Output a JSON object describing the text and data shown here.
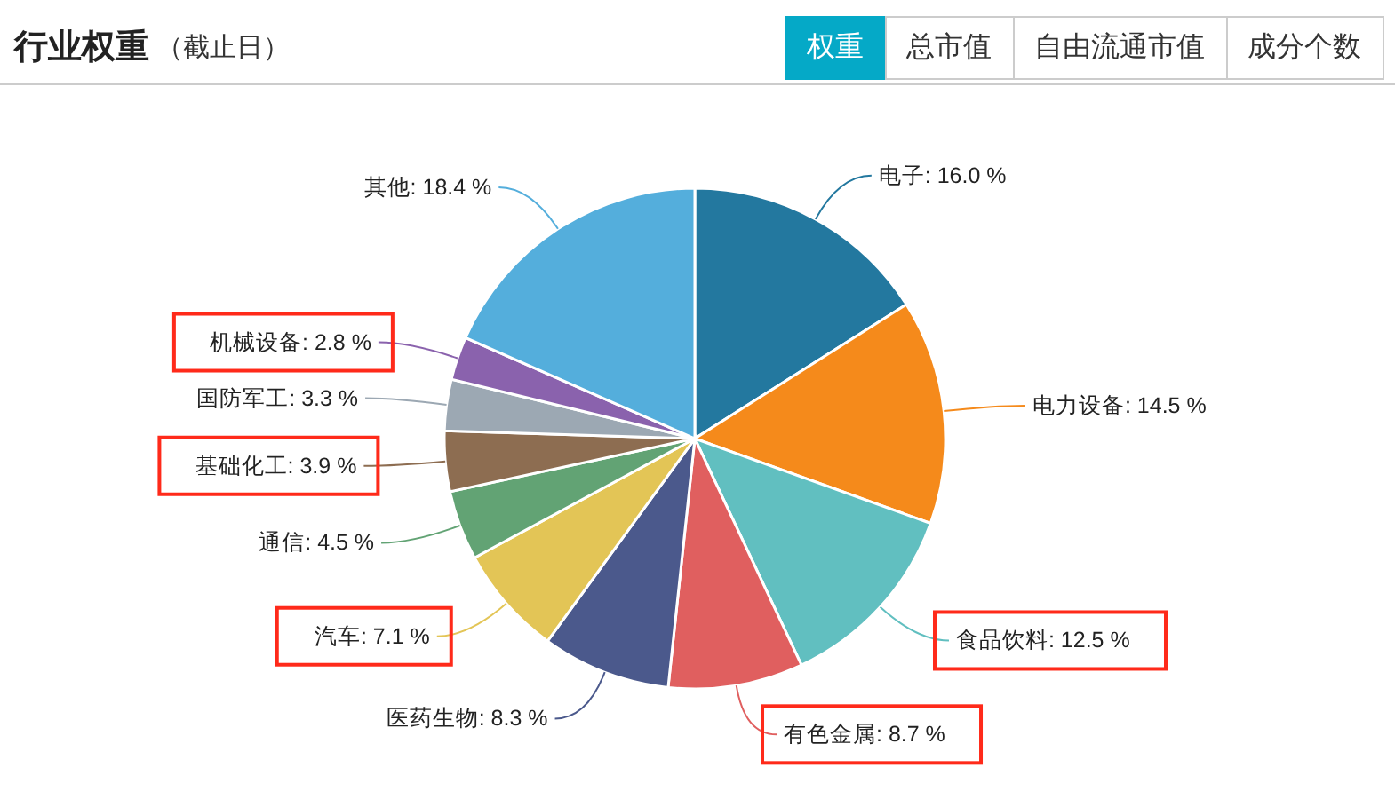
{
  "chart_data": {
    "type": "pie",
    "title": "行业权重",
    "subtitle": "（截止日）",
    "annotations": [
      "权重",
      "总市值",
      "自由流通市值",
      "成分个数"
    ],
    "categories": [
      "电子",
      "电力设备",
      "食品饮料",
      "有色金属",
      "医药生物",
      "汽车",
      "通信",
      "基础化工",
      "国防军工",
      "机械设备",
      "其他"
    ],
    "values": [
      16.0,
      14.5,
      12.5,
      8.7,
      8.3,
      7.1,
      4.5,
      3.9,
      3.3,
      2.8,
      18.4
    ],
    "value_labels": [
      "16.0 %",
      "14.5 %",
      "12.5 %",
      "8.7 %",
      "8.3 %",
      "7.1 %",
      "4.5 %",
      "3.9 %",
      "3.3 %",
      "2.8 %",
      "18.4 %"
    ],
    "colors": [
      "#23789f",
      "#f58a1b",
      "#61bfc0",
      "#e05f5f",
      "#4b598c",
      "#e3c556",
      "#62a374",
      "#8d6d51",
      "#9ca8b3",
      "#8a62ad",
      "#54aedc"
    ]
  }
}
